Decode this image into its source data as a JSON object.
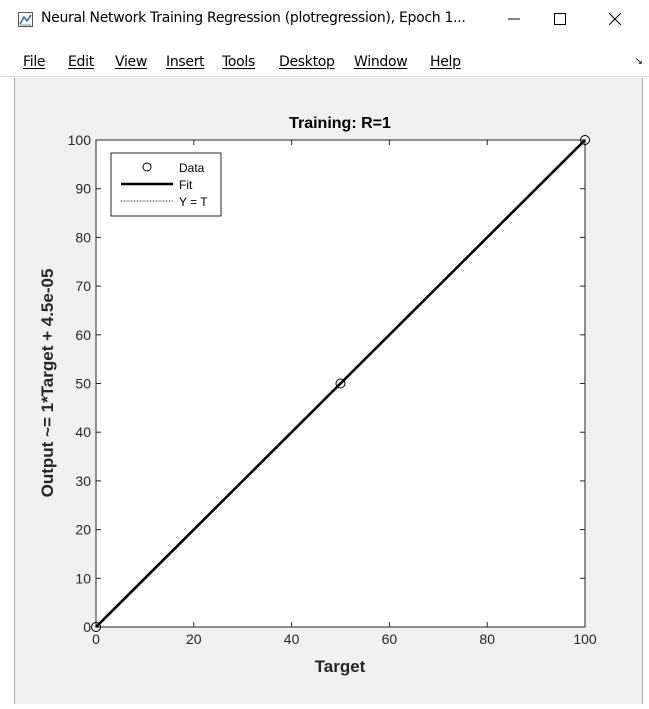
{
  "window": {
    "title": "Neural Network Training Regression (plotregression), Epoch 1...",
    "controls": {
      "minimize": "—",
      "maximize": "☐",
      "close": "✕"
    }
  },
  "menu": [
    "File",
    "Edit",
    "View",
    "Insert",
    "Tools",
    "Desktop",
    "Window",
    "Help"
  ],
  "chart_data": {
    "type": "scatter",
    "title": "Training: R=1",
    "xlabel": "Target",
    "ylabel": "Output ~= 1*Target + 4.5e-05",
    "xlim": [
      0,
      100
    ],
    "ylim": [
      0,
      100
    ],
    "xticks": [
      0,
      20,
      40,
      60,
      80,
      100
    ],
    "yticks": [
      0,
      10,
      20,
      30,
      40,
      50,
      60,
      70,
      80,
      90,
      100
    ],
    "grid": false,
    "legend_position": "top-left",
    "series": [
      {
        "name": "Data",
        "kind": "markers",
        "marker": "circle",
        "x": [
          0,
          50,
          100
        ],
        "y": [
          0,
          50,
          100
        ],
        "color": "#000000"
      },
      {
        "name": "Fit",
        "kind": "line",
        "style": "solid",
        "x": [
          0,
          100
        ],
        "y": [
          4.5e-05,
          100.000045
        ],
        "color": "#000000"
      },
      {
        "name": "Y = T",
        "kind": "line",
        "style": "dotted",
        "x": [
          0,
          100
        ],
        "y": [
          0,
          100
        ],
        "color": "#000000"
      }
    ]
  }
}
